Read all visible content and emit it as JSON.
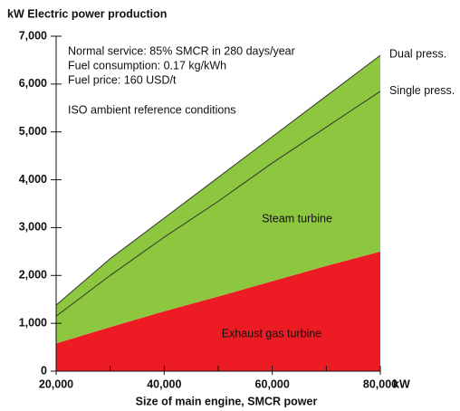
{
  "chart_data": {
    "type": "area",
    "title": "kW Electric power production",
    "x_label": "Size of main engine, SMCR power",
    "x_unit": "kW",
    "x": [
      20000,
      30000,
      40000,
      50000,
      60000,
      70000,
      80000
    ],
    "series": [
      {
        "name": "Exhaust gas turbine",
        "color": "#ed1c24",
        "fill": "zero",
        "values": [
          580,
          920,
          1250,
          1560,
          1880,
          2200,
          2500
        ]
      },
      {
        "name": "Dual press.",
        "color": "#8dc63f",
        "line_color": "#333333",
        "fill": "previous",
        "values": [
          1380,
          2350,
          3200,
          4050,
          4900,
          5750,
          6600
        ]
      },
      {
        "name": "Single press.",
        "line_color": "#333333",
        "fill": "none",
        "values": [
          1150,
          2000,
          2800,
          3550,
          4350,
          5100,
          5850
        ]
      }
    ],
    "area_label": "Steam turbine",
    "annotations": [
      "Normal service: 85% SMCR in 280 days/year",
      "Fuel consumption: 0.17 kg/kWh",
      "Fuel price: 160 USD/t",
      "ISO ambient reference conditions"
    ],
    "xlim": [
      20000,
      80000
    ],
    "xticks": [
      {
        "value": 20000,
        "label": "20,000"
      },
      {
        "value": 40000,
        "label": "40,000"
      },
      {
        "value": 60000,
        "label": "60,000"
      },
      {
        "value": 80000,
        "label": "80,000"
      }
    ],
    "xminor_ticks": [
      30000,
      50000,
      70000
    ],
    "ylim": [
      0,
      7000
    ],
    "yticks": [
      0,
      {
        "value": 1000,
        "label": "1,000"
      },
      {
        "value": 2000,
        "label": "2,000"
      },
      {
        "value": 3000,
        "label": "3,000"
      },
      {
        "value": 4000,
        "label": "4,000"
      },
      {
        "value": 5000,
        "label": "5,000"
      },
      {
        "value": 6000,
        "label": "6,000"
      },
      {
        "value": 7000,
        "label": "7,000"
      }
    ],
    "grid": false
  }
}
